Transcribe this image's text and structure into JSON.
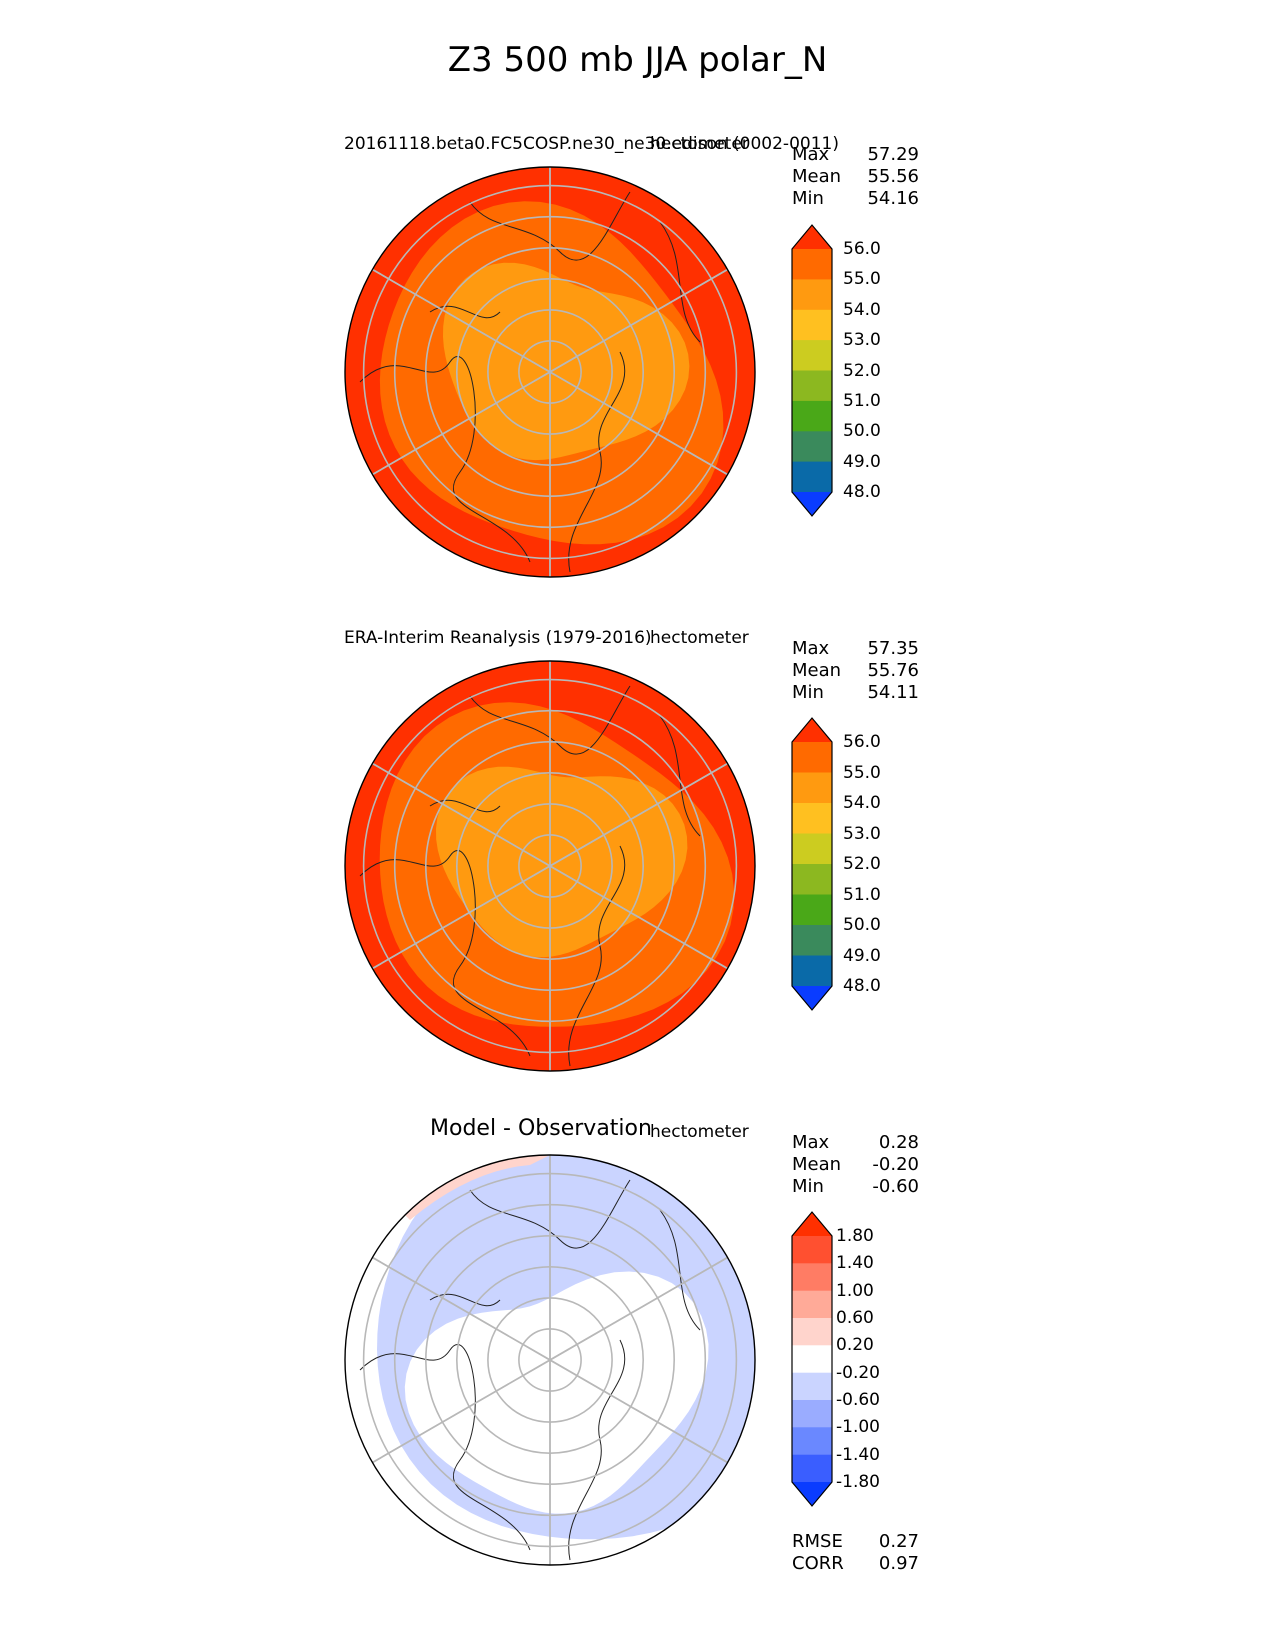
{
  "figure": {
    "title": "Z3 500 mb JJA polar_N"
  },
  "chart_data": [
    {
      "type": "heatmap",
      "projection": "north-polar-stereographic",
      "title": "20161118.beta0.FC5COSP.ne30_ne30.edison (0002-0011)",
      "units": "hectometer",
      "stats": {
        "Max": "57.29",
        "Mean": "55.56",
        "Min": "54.16"
      },
      "colorbar": {
        "levels": [
          48.0,
          49.0,
          50.0,
          51.0,
          52.0,
          53.0,
          54.0,
          55.0,
          56.0
        ],
        "tick_labels": [
          "48.0",
          "49.0",
          "50.0",
          "51.0",
          "52.0",
          "53.0",
          "54.0",
          "55.0",
          "56.0"
        ],
        "colors": [
          "#0a3cff",
          "#0a6aa8",
          "#3a8a5c",
          "#4aa818",
          "#8cb820",
          "#cccc20",
          "#ffc020",
          "#ff9a10",
          "#ff6a00",
          "#ff3000"
        ],
        "extend": "both"
      },
      "field_bands": [
        {
          "range": "> 56.0",
          "color": "#ff3000",
          "region": "outer ring (mid-latitudes)"
        },
        {
          "range": "55.0 – 56.0",
          "color": "#ff6a00",
          "region": "middle ring"
        },
        {
          "range": "54.0 – 55.0",
          "color": "#ff9a10",
          "region": "polar cap"
        }
      ]
    },
    {
      "type": "heatmap",
      "projection": "north-polar-stereographic",
      "title": "ERA-Interim Reanalysis (1979-2016)",
      "units": "hectometer",
      "stats": {
        "Max": "57.35",
        "Mean": "55.76",
        "Min": "54.11"
      },
      "colorbar": {
        "levels": [
          48.0,
          49.0,
          50.0,
          51.0,
          52.0,
          53.0,
          54.0,
          55.0,
          56.0
        ],
        "tick_labels": [
          "48.0",
          "49.0",
          "50.0",
          "51.0",
          "52.0",
          "53.0",
          "54.0",
          "55.0",
          "56.0"
        ],
        "colors": [
          "#0a3cff",
          "#0a6aa8",
          "#3a8a5c",
          "#4aa818",
          "#8cb820",
          "#cccc20",
          "#ffc020",
          "#ff9a10",
          "#ff6a00",
          "#ff3000"
        ],
        "extend": "both"
      },
      "field_bands": [
        {
          "range": "> 56.0",
          "color": "#ff3000",
          "region": "outer ring (mid-latitudes)"
        },
        {
          "range": "55.0 – 56.0",
          "color": "#ff6a00",
          "region": "middle ring"
        },
        {
          "range": "54.0 – 55.0",
          "color": "#ff9a10",
          "region": "polar cap"
        }
      ]
    },
    {
      "type": "heatmap",
      "projection": "north-polar-stereographic",
      "title": "Model - Observation",
      "units": "hectometer",
      "stats": {
        "Max": "0.28",
        "Mean": "-0.20",
        "Min": "-0.60"
      },
      "metrics": {
        "RMSE": "0.27",
        "CORR": "0.97"
      },
      "colorbar": {
        "levels": [
          -1.8,
          -1.4,
          -1.0,
          -0.6,
          -0.2,
          0.2,
          0.6,
          1.0,
          1.4,
          1.8
        ],
        "tick_labels": [
          "-1.80",
          "-1.40",
          "-1.00",
          "-0.60",
          "-0.20",
          "0.20",
          "0.60",
          "1.00",
          "1.40",
          "1.80"
        ],
        "colors": [
          "#0a3cff",
          "#3a5eff",
          "#6a88ff",
          "#9aacff",
          "#cad4ff",
          "#ffffff",
          "#ffd4cc",
          "#ffaa98",
          "#ff7c64",
          "#ff5030",
          "#ff3000"
        ],
        "extend": "both"
      },
      "field_bands": [
        {
          "range": "-0.60 – -0.20",
          "color": "#cad4ff",
          "region": "broad ring over North Pacific / North America / Atlantic sector"
        },
        {
          "range": "-0.20 – 0.20",
          "color": "#ffffff",
          "region": "central Arctic and Eurasia"
        },
        {
          "range": "0.20 – 0.60",
          "color": "#ffd4cc",
          "region": "small patch at top edge"
        }
      ]
    }
  ]
}
